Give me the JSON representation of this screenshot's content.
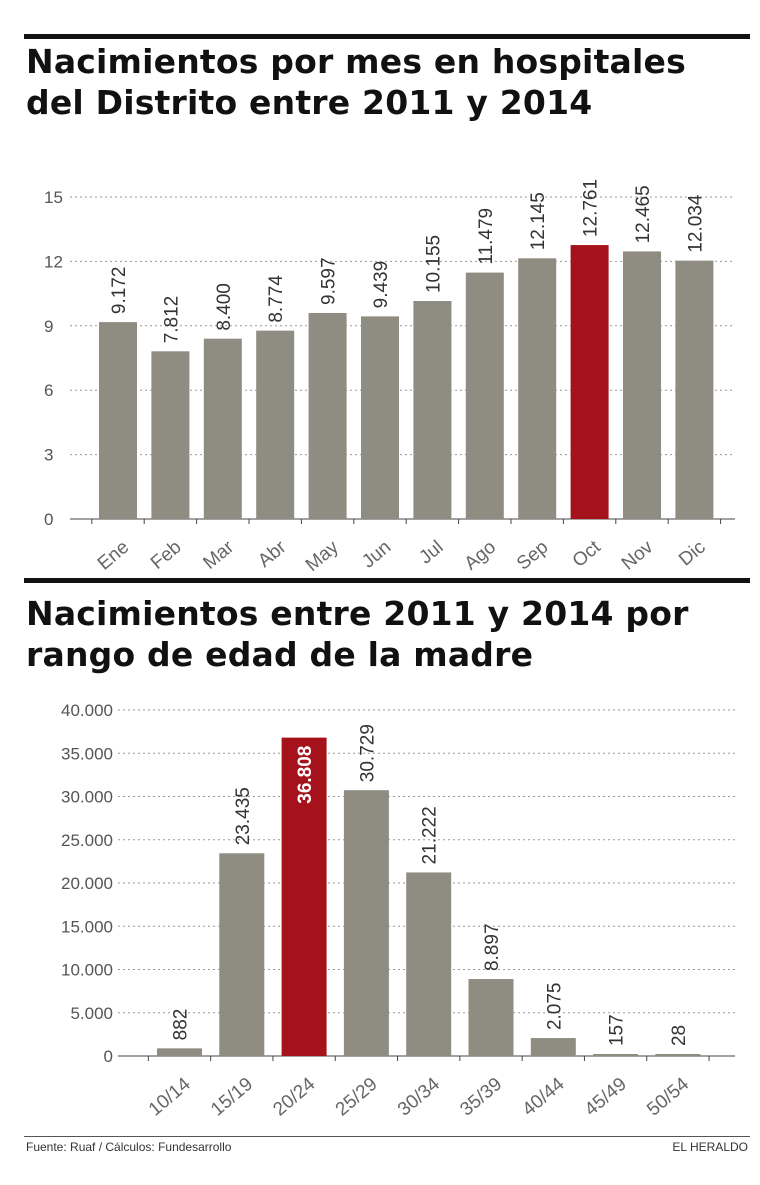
{
  "colors": {
    "bar": "#8f8c82",
    "highlight": "#a6121b"
  },
  "chart_data": [
    {
      "type": "bar",
      "title": "Nacimientos por mes en hospitales del Distrito entre 2011 y 2014",
      "categories": [
        "Ene",
        "Feb",
        "Mar",
        "Abr",
        "May",
        "Jun",
        "Jul",
        "Ago",
        "Sep",
        "Oct",
        "Nov",
        "Dic"
      ],
      "values": [
        9.172,
        7.812,
        8.4,
        8.774,
        9.597,
        9.439,
        10.155,
        11.479,
        12.145,
        12.761,
        12.465,
        12.034
      ],
      "value_labels": [
        "9.172",
        "7.812",
        "8.400",
        "8.774",
        "9.597",
        "9.439",
        "10.155",
        "11.479",
        "12.145",
        "12.761",
        "12.465",
        "12.034"
      ],
      "yticks": [
        0,
        3,
        6,
        9,
        12,
        15
      ],
      "ytick_labels": [
        "0",
        "3",
        "6",
        "9",
        "12",
        "15"
      ],
      "ylim": [
        0,
        15
      ],
      "highlight": "Oct",
      "grid": true
    },
    {
      "type": "bar",
      "title": "Nacimientos entre 2011 y 2014 por rango de edad de la madre",
      "categories": [
        "10/14",
        "15/19",
        "20/24",
        "25/29",
        "30/34",
        "35/39",
        "40/44",
        "45/49",
        "50/54"
      ],
      "values": [
        882,
        23435,
        36808,
        30729,
        21222,
        8897,
        2075,
        157,
        28
      ],
      "value_labels": [
        "882",
        "23.435",
        "36.808",
        "30.729",
        "21.222",
        "8.897",
        "2.075",
        "157",
        "28"
      ],
      "yticks": [
        0,
        5000,
        10000,
        15000,
        20000,
        25000,
        30000,
        35000,
        40000
      ],
      "ytick_labels": [
        "0",
        "5.000",
        "10.000",
        "15.000",
        "20.000",
        "25.000",
        "30.000",
        "35.000",
        "40.000"
      ],
      "ylim": [
        0,
        40000
      ],
      "highlight": "20/24",
      "grid": true
    }
  ],
  "footer": {
    "source": "Fuente: Ruaf / Cálculos: Fundesarrollo",
    "brand": "EL HERALDO"
  }
}
